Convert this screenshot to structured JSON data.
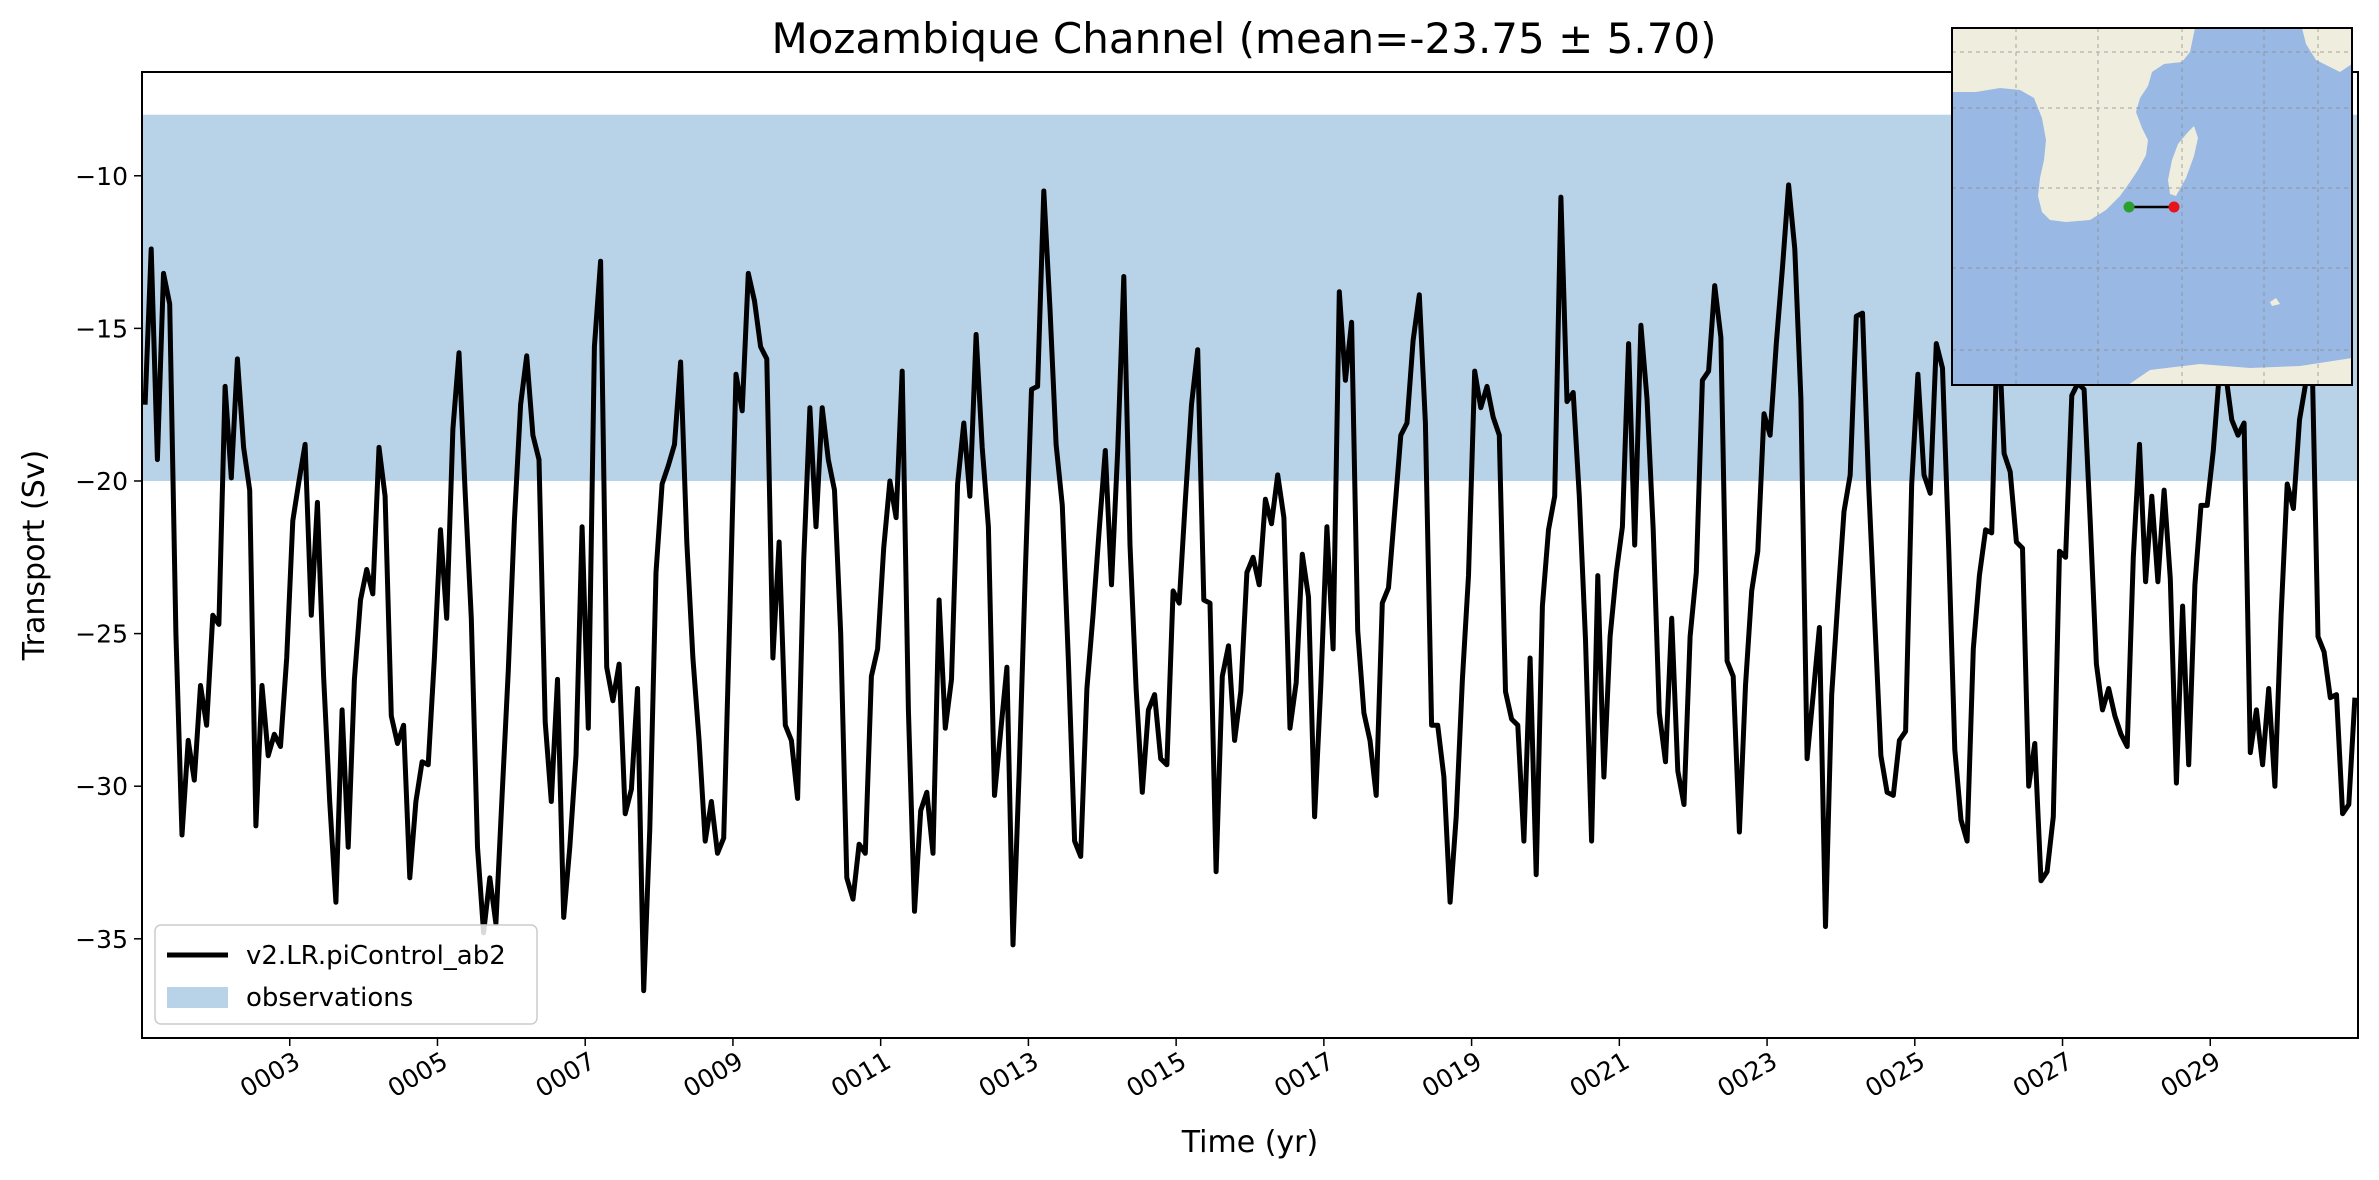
{
  "chart_data": {
    "type": "line",
    "title": "Mozambique Channel (mean=-23.75 ± 5.70)",
    "xlabel": "Time (yr)",
    "ylabel": "Transport (Sv)",
    "xlim": [
      1.0,
      31.0
    ],
    "ylim": [
      -38.25,
      -6.6
    ],
    "xticks": [
      3,
      5,
      7,
      9,
      11,
      13,
      15,
      17,
      19,
      21,
      23,
      25,
      27,
      29
    ],
    "xtick_labels": [
      "0003",
      "0005",
      "0007",
      "0009",
      "0011",
      "0013",
      "0015",
      "0017",
      "0019",
      "0021",
      "0023",
      "0025",
      "0027",
      "0029"
    ],
    "yticks": [
      -10,
      -15,
      -20,
      -25,
      -30,
      -35
    ],
    "ytick_labels": [
      "−10",
      "−15",
      "−20",
      "−25",
      "−30",
      "−35"
    ],
    "grid": false,
    "legend_position": "lower-left",
    "observations_band": {
      "name": "observations",
      "y_min": -20,
      "y_max": -8,
      "color": "#b8d3e8"
    },
    "series": [
      {
        "name": "v2.LR.piControl_ab2",
        "color": "#000000",
        "values": [
          -17.5,
          -12.4,
          -19.3,
          -13.2,
          -14.2,
          -25.0,
          -31.6,
          -28.5,
          -29.8,
          -26.7,
          -28.0,
          -24.4,
          -24.7,
          -16.9,
          -19.9,
          -16.0,
          -18.9,
          -20.3,
          -31.3,
          -26.7,
          -29.0,
          -28.3,
          -28.7,
          -25.8,
          -21.3,
          -20.0,
          -18.8,
          -24.4,
          -20.7,
          -26.4,
          -30.5,
          -33.8,
          -27.5,
          -32.0,
          -26.5,
          -23.9,
          -22.9,
          -23.7,
          -18.9,
          -20.5,
          -27.7,
          -28.6,
          -28.0,
          -33.0,
          -30.5,
          -29.2,
          -29.3,
          -25.8,
          -21.6,
          -24.5,
          -18.3,
          -15.8,
          -20.4,
          -24.5,
          -32.0,
          -34.8,
          -33.0,
          -34.5,
          -30.3,
          -26.2,
          -21.3,
          -17.5,
          -15.9,
          -18.5,
          -19.3,
          -27.9,
          -30.5,
          -26.5,
          -34.3,
          -32.0,
          -29.0,
          -21.5,
          -28.1,
          -15.6,
          -12.8,
          -26.1,
          -27.2,
          -26.0,
          -30.9,
          -30.1,
          -26.8,
          -36.7,
          -31.4,
          -23.0,
          -20.1,
          -19.5,
          -18.8,
          -16.1,
          -22.0,
          -25.8,
          -28.5,
          -31.8,
          -30.5,
          -32.2,
          -31.7,
          -24.3,
          -16.5,
          -17.7,
          -13.2,
          -14.1,
          -15.6,
          -16.0,
          -25.8,
          -22.0,
          -28.0,
          -28.5,
          -30.4,
          -22.6,
          -17.6,
          -21.5,
          -17.6,
          -19.3,
          -20.3,
          -25.0,
          -33.0,
          -33.7,
          -31.9,
          -32.2,
          -26.4,
          -25.5,
          -22.2,
          -20.0,
          -21.2,
          -16.4,
          -27.5,
          -34.1,
          -30.8,
          -30.2,
          -32.2,
          -23.9,
          -28.1,
          -26.5,
          -20.1,
          -18.1,
          -20.5,
          -15.2,
          -18.9,
          -21.5,
          -30.3,
          -28.2,
          -26.1,
          -35.2,
          -29.5,
          -23.0,
          -17.0,
          -16.9,
          -10.5,
          -14.3,
          -18.8,
          -20.8,
          -25.9,
          -31.8,
          -32.3,
          -26.8,
          -24.4,
          -21.6,
          -19.0,
          -23.4,
          -19.0,
          -13.3,
          -22.1,
          -26.8,
          -30.2,
          -27.5,
          -27.0,
          -29.1,
          -29.3,
          -23.6,
          -24.0,
          -20.6,
          -17.5,
          -15.7,
          -23.9,
          -24.0,
          -32.8,
          -26.4,
          -25.4,
          -28.5,
          -26.9,
          -23.0,
          -22.5,
          -23.4,
          -20.6,
          -21.4,
          -19.8,
          -21.2,
          -28.1,
          -26.6,
          -22.4,
          -23.8,
          -31.0,
          -26.7,
          -21.5,
          -25.5,
          -13.8,
          -16.7,
          -14.8,
          -24.9,
          -27.6,
          -28.5,
          -30.3,
          -24.0,
          -23.5,
          -21.0,
          -18.5,
          -18.1,
          -15.4,
          -13.9,
          -18.1,
          -28.0,
          -28.0,
          -29.7,
          -33.8,
          -31.0,
          -26.5,
          -23.1,
          -16.4,
          -17.6,
          -16.9,
          -17.9,
          -18.5,
          -26.9,
          -27.8,
          -28.0,
          -31.8,
          -25.8,
          -32.9,
          -24.1,
          -21.6,
          -20.5,
          -10.7,
          -17.4,
          -17.1,
          -20.5,
          -25.2,
          -31.8,
          -23.1,
          -29.7,
          -25.1,
          -23.0,
          -21.5,
          -15.5,
          -22.1,
          -14.9,
          -17.3,
          -21.6,
          -27.6,
          -29.2,
          -24.5,
          -29.5,
          -30.6,
          -25.1,
          -23.0,
          -16.7,
          -16.4,
          -13.6,
          -15.3,
          -25.9,
          -26.4,
          -31.5,
          -26.7,
          -23.6,
          -22.3,
          -17.8,
          -18.5,
          -15.5,
          -13.0,
          -10.3,
          -12.4,
          -17.3,
          -29.1,
          -27.0,
          -24.8,
          -34.6,
          -27.0,
          -23.9,
          -21.0,
          -19.8,
          -14.6,
          -14.5,
          -20.1,
          -24.6,
          -29.0,
          -30.2,
          -30.3,
          -28.5,
          -28.2,
          -20.1,
          -16.5,
          -19.8,
          -20.4,
          -15.5,
          -16.3,
          -22.2,
          -28.8,
          -31.1,
          -31.8,
          -25.5,
          -23.1,
          -21.6,
          -21.7,
          -14.5,
          -19.1,
          -19.7,
          -22.0,
          -22.2,
          -30.0,
          -28.6,
          -33.1,
          -32.8,
          -31.0,
          -22.3,
          -22.5,
          -17.2,
          -16.8,
          -17.0,
          -21.3,
          -26.0,
          -27.5,
          -26.8,
          -27.7,
          -28.3,
          -28.7,
          -22.5,
          -18.8,
          -23.3,
          -20.5,
          -23.3,
          -20.3,
          -23.2,
          -29.9,
          -24.1,
          -29.3,
          -23.4,
          -20.8,
          -20.8,
          -19.0,
          -16.4,
          -16.5,
          -18.0,
          -18.5,
          -18.1,
          -28.9,
          -27.5,
          -29.3,
          -26.8,
          -30.0,
          -24.4,
          -20.1,
          -20.9,
          -18.0,
          -16.8,
          -15.5,
          -25.1,
          -25.6,
          -27.1,
          -27.0,
          -30.9,
          -30.6,
          -27.1
        ]
      }
    ]
  },
  "inset_map": {
    "start_point_color": "#2ca02c",
    "end_point_color": "#e8141c",
    "land_color": "#efedde",
    "ocean_color": "#99b8e3"
  }
}
